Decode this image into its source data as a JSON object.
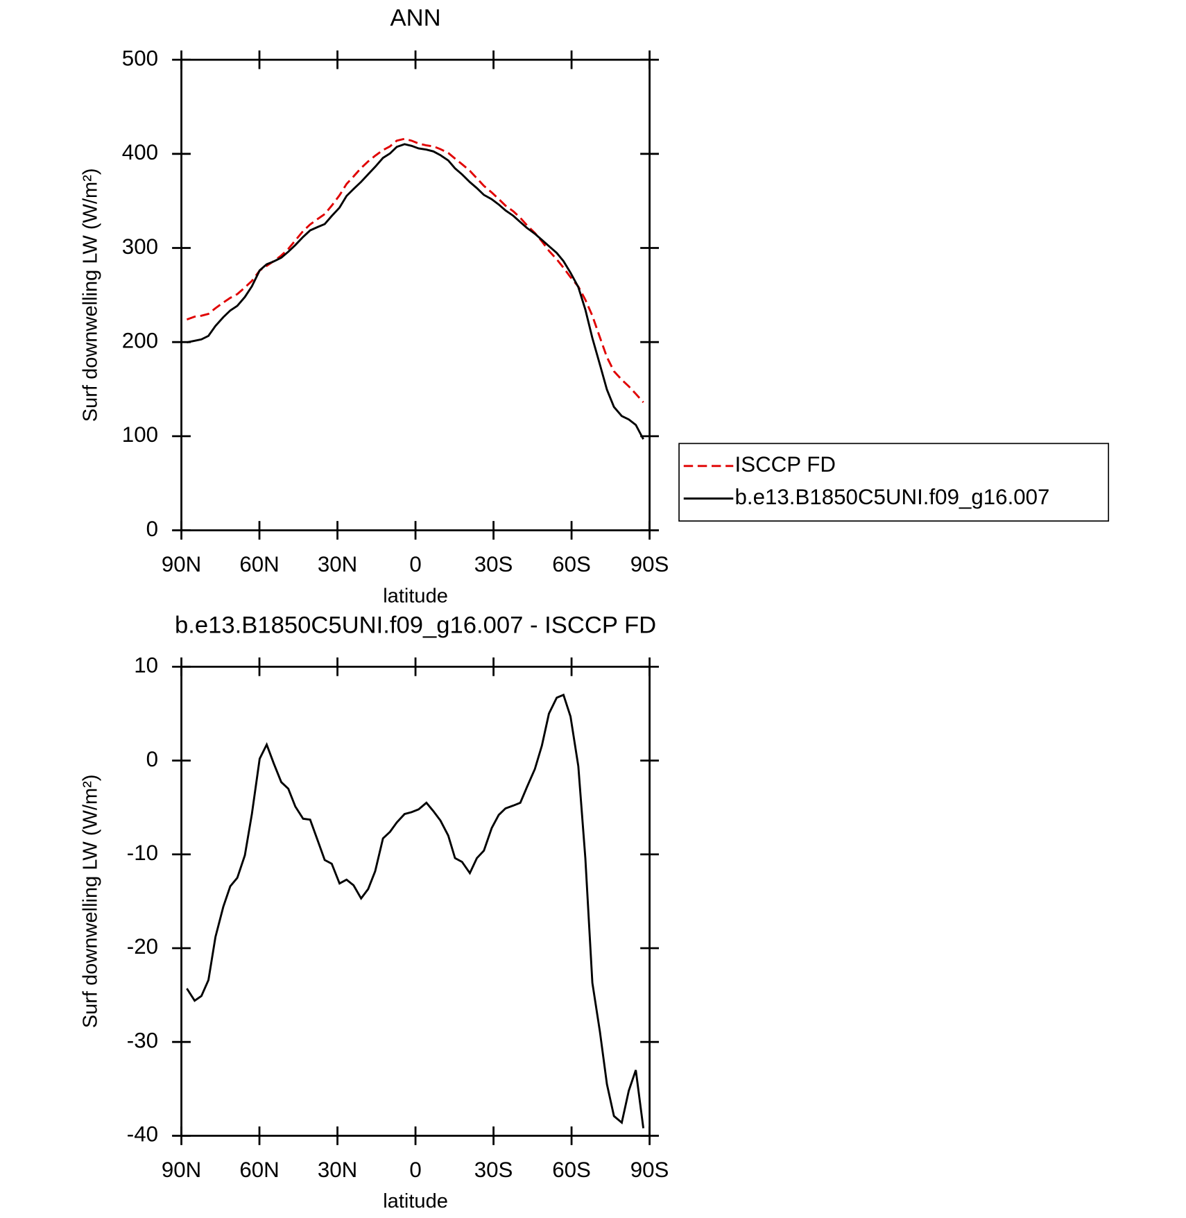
{
  "chart_data": [
    {
      "type": "line",
      "title": "ANN",
      "xlabel": "latitude",
      "ylabel": "Surf downwelling LW (W/m²)",
      "x": [
        87.9,
        84.9,
        82.3,
        79.6,
        76.9,
        73.9,
        71.2,
        68.5,
        65.6,
        62.9,
        59.9,
        57.2,
        54.5,
        51.6,
        48.9,
        46.2,
        43.2,
        40.5,
        37.5,
        34.9,
        32.2,
        29.2,
        26.5,
        23.8,
        20.9,
        18.2,
        15.5,
        12.5,
        9.8,
        7.2,
        4.2,
        1.5,
        -1.2,
        -4.2,
        -6.9,
        -9.6,
        -12.6,
        -15.2,
        -17.9,
        -20.9,
        -23.6,
        -26.3,
        -29.3,
        -32.0,
        -34.6,
        -37.6,
        -40.3,
        -42.9,
        -45.9,
        -48.6,
        -51.3,
        -54.3,
        -56.9,
        -59.6,
        -62.6,
        -65.3,
        -68.0,
        -70.9,
        -73.6,
        -76.3,
        -79.3,
        -82.0,
        -84.7,
        -87.6
      ],
      "series": [
        {
          "name": "ISCCP FD",
          "color": "#e00000",
          "dashed": true,
          "values": [
            224,
            227,
            228,
            230,
            236,
            242,
            247,
            251,
            258,
            265,
            276,
            281,
            286,
            292,
            299,
            308,
            318,
            325,
            331,
            336,
            345,
            356,
            368,
            376,
            385,
            392,
            398,
            404,
            408,
            414,
            416,
            414,
            411,
            409,
            408,
            405,
            401,
            395,
            389,
            382,
            374,
            366,
            359,
            352,
            345,
            339,
            332,
            324,
            316,
            307,
            297,
            288,
            279,
            269,
            259,
            245,
            228,
            205,
            184,
            169,
            160,
            153,
            145,
            136
          ]
        },
        {
          "name": "b.e13.B1850C5UNI.f09_g16.007",
          "color": "#000000",
          "dashed": false,
          "values": [
            199.7,
            201.4,
            202.9,
            206.6,
            217.2,
            226.4,
            233.6,
            238.5,
            247.9,
            259.3,
            276.2,
            282.7,
            285.7,
            289.7,
            296.0,
            303.1,
            311.8,
            318.7,
            322.4,
            325.4,
            334.0,
            342.9,
            355.3,
            362.7,
            370.3,
            378.3,
            386.2,
            395.7,
            400.4,
            407.4,
            410.3,
            408.5,
            405.8,
            404.5,
            402.6,
            398.6,
            393.0,
            384.6,
            378.2,
            370.0,
            363.6,
            356.4,
            351.8,
            346.2,
            339.9,
            334.2,
            327.5,
            321.2,
            315.1,
            308.6,
            302.0,
            294.7,
            286.0,
            273.7,
            258.4,
            234.6,
            204.3,
            176.1,
            149.5,
            131.1,
            121.4,
            117.8,
            112.0,
            96.8
          ]
        }
      ],
      "xlim": [
        90,
        -90
      ],
      "xticks": [
        {
          "value": 90,
          "label": "90N"
        },
        {
          "value": 60,
          "label": "60N"
        },
        {
          "value": 30,
          "label": "30N"
        },
        0,
        {
          "value": -30,
          "label": "30S"
        },
        {
          "value": -60,
          "label": "60S"
        },
        {
          "value": -90,
          "label": "90S"
        }
      ],
      "ylim": [
        0,
        500
      ],
      "yticks": [
        0,
        100,
        200,
        300,
        400,
        500
      ],
      "legend": "outside right"
    },
    {
      "type": "line",
      "title": "b.e13.B1850C5UNI.f09_g16.007 - ISCCP FD",
      "xlabel": "latitude",
      "ylabel": "Surf downwelling LW (W/m²)",
      "x": [
        87.9,
        84.9,
        82.3,
        79.6,
        76.9,
        73.9,
        71.2,
        68.5,
        65.6,
        62.9,
        59.9,
        57.2,
        54.5,
        51.6,
        48.9,
        46.2,
        43.2,
        40.5,
        37.5,
        34.9,
        32.2,
        29.2,
        26.5,
        23.8,
        20.9,
        18.2,
        15.5,
        12.5,
        9.8,
        7.2,
        4.2,
        1.5,
        -1.2,
        -4.2,
        -6.9,
        -9.6,
        -12.6,
        -15.2,
        -17.9,
        -20.9,
        -23.6,
        -26.3,
        -29.3,
        -32.0,
        -34.6,
        -37.6,
        -40.3,
        -42.9,
        -45.9,
        -48.6,
        -51.3,
        -54.3,
        -56.9,
        -59.6,
        -62.6,
        -65.3,
        -68.0,
        -70.9,
        -73.6,
        -76.3,
        -79.3,
        -82.0,
        -84.7,
        -87.6
      ],
      "series": [
        {
          "color": "#000000",
          "dashed": false,
          "values": [
            -24.3,
            -25.6,
            -25.1,
            -23.4,
            -18.8,
            -15.6,
            -13.4,
            -12.5,
            -10.1,
            -5.7,
            0.2,
            1.7,
            -0.3,
            -2.3,
            -3.0,
            -4.9,
            -6.2,
            -6.3,
            -8.6,
            -10.6,
            -11.0,
            -13.1,
            -12.7,
            -13.3,
            -14.7,
            -13.7,
            -11.8,
            -8.3,
            -7.6,
            -6.6,
            -5.7,
            -5.5,
            -5.2,
            -4.5,
            -5.4,
            -6.4,
            -8.0,
            -10.4,
            -10.8,
            -12.0,
            -10.4,
            -9.6,
            -7.2,
            -5.8,
            -5.1,
            -4.8,
            -4.5,
            -2.8,
            -0.9,
            1.6,
            5.0,
            6.7,
            7.0,
            4.7,
            -0.6,
            -10.4,
            -23.7,
            -28.9,
            -34.5,
            -37.9,
            -38.6,
            -35.2,
            -33.0,
            -39.2
          ]
        }
      ],
      "xlim": [
        90,
        -90
      ],
      "xticks": [
        {
          "value": 90,
          "label": "90N"
        },
        {
          "value": 60,
          "label": "60N"
        },
        {
          "value": 30,
          "label": "30N"
        },
        0,
        {
          "value": -30,
          "label": "30S"
        },
        {
          "value": -60,
          "label": "60S"
        },
        {
          "value": -90,
          "label": "90S"
        }
      ],
      "ylim": [
        -40,
        10
      ],
      "yticks": [
        -40,
        -30,
        -20,
        -10,
        0,
        10
      ]
    }
  ]
}
